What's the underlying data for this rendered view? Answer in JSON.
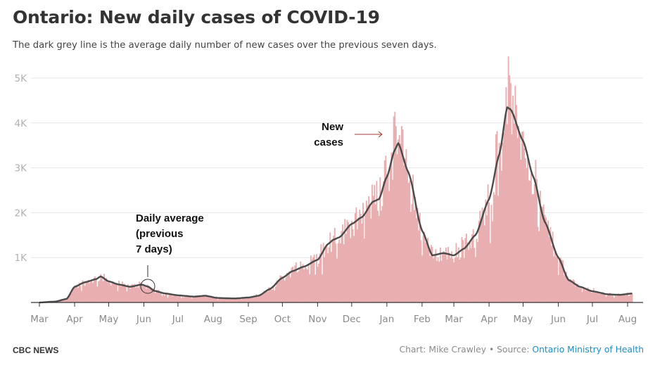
{
  "header": {
    "title": "Ontario: New daily cases of COVID-19",
    "subtitle": "The dark grey line is the average daily number of new cases over the previous seven days."
  },
  "footer": {
    "brand": "CBC NEWS",
    "credit": "Chart: Mike Crawley",
    "separator": " • ",
    "source_prefix": "Source: ",
    "source_link": "Ontario Ministry of Health"
  },
  "colors": {
    "bars": "#e8aeb0",
    "average_line": "#4a4a4a",
    "grid": "#e6e6e6",
    "axis": "#333333",
    "arrow": "#a33a3a",
    "link": "#1f8bbf"
  },
  "chart_data": {
    "type": "bar",
    "title": "Ontario: New daily cases of COVID-19",
    "xlabel": "",
    "ylabel": "",
    "ylim": [
      0,
      5000
    ],
    "yticks": [
      1000,
      2000,
      3000,
      4000,
      5000
    ],
    "ytick_labels": [
      "1K",
      "2K",
      "3K",
      "4K",
      "5K"
    ],
    "grid": true,
    "x_range": [
      "2020-03-01",
      "2021-08-05"
    ],
    "xticks": [
      {
        "date": "2020-03-01",
        "label": "Mar"
      },
      {
        "date": "2020-04-01",
        "label": "Apr"
      },
      {
        "date": "2020-05-01",
        "label": "May"
      },
      {
        "date": "2020-06-01",
        "label": "Jun"
      },
      {
        "date": "2020-07-01",
        "label": "Jul"
      },
      {
        "date": "2020-08-01",
        "label": "Aug"
      },
      {
        "date": "2020-09-01",
        "label": "Sep"
      },
      {
        "date": "2020-10-01",
        "label": "Oct"
      },
      {
        "date": "2020-11-01",
        "label": "Nov"
      },
      {
        "date": "2020-12-01",
        "label": "Dec"
      },
      {
        "date": "2021-01-01",
        "label": "Jan"
      },
      {
        "date": "2021-02-01",
        "label": "Feb"
      },
      {
        "date": "2021-03-01",
        "label": "Mar"
      },
      {
        "date": "2021-04-01",
        "label": "Apr"
      },
      {
        "date": "2021-05-01",
        "label": "May"
      },
      {
        "date": "2021-06-01",
        "label": "Jun"
      },
      {
        "date": "2021-07-01",
        "label": "Jul"
      },
      {
        "date": "2021-08-01",
        "label": "Aug"
      }
    ],
    "series": [
      {
        "name": "Daily average (previous 7 days)",
        "type": "line",
        "points": [
          [
            "2020-03-01",
            0
          ],
          [
            "2020-03-15",
            20
          ],
          [
            "2020-03-25",
            80
          ],
          [
            "2020-04-01",
            350
          ],
          [
            "2020-04-10",
            450
          ],
          [
            "2020-04-20",
            520
          ],
          [
            "2020-04-24",
            580
          ],
          [
            "2020-05-01",
            470
          ],
          [
            "2020-05-10",
            400
          ],
          [
            "2020-05-20",
            350
          ],
          [
            "2020-05-30",
            400
          ],
          [
            "2020-06-05",
            350
          ],
          [
            "2020-06-10",
            260
          ],
          [
            "2020-06-20",
            200
          ],
          [
            "2020-07-01",
            160
          ],
          [
            "2020-07-15",
            130
          ],
          [
            "2020-07-25",
            150
          ],
          [
            "2020-08-05",
            100
          ],
          [
            "2020-08-20",
            90
          ],
          [
            "2020-09-01",
            110
          ],
          [
            "2020-09-10",
            150
          ],
          [
            "2020-09-20",
            300
          ],
          [
            "2020-10-01",
            550
          ],
          [
            "2020-10-10",
            700
          ],
          [
            "2020-10-20",
            800
          ],
          [
            "2020-11-01",
            950
          ],
          [
            "2020-11-10",
            1300
          ],
          [
            "2020-11-15",
            1400
          ],
          [
            "2020-11-20",
            1450
          ],
          [
            "2020-12-01",
            1750
          ],
          [
            "2020-12-10",
            1900
          ],
          [
            "2020-12-20",
            2250
          ],
          [
            "2020-12-25",
            2300
          ],
          [
            "2021-01-01",
            2800
          ],
          [
            "2021-01-08",
            3400
          ],
          [
            "2021-01-11",
            3550
          ],
          [
            "2021-01-20",
            2900
          ],
          [
            "2021-02-01",
            1600
          ],
          [
            "2021-02-10",
            1050
          ],
          [
            "2021-02-20",
            1100
          ],
          [
            "2021-03-01",
            1050
          ],
          [
            "2021-03-10",
            1200
          ],
          [
            "2021-03-20",
            1500
          ],
          [
            "2021-04-01",
            2300
          ],
          [
            "2021-04-10",
            3300
          ],
          [
            "2021-04-17",
            4350
          ],
          [
            "2021-04-20",
            4300
          ],
          [
            "2021-05-01",
            3600
          ],
          [
            "2021-05-10",
            2800
          ],
          [
            "2021-05-20",
            1800
          ],
          [
            "2021-06-01",
            1000
          ],
          [
            "2021-06-10",
            500
          ],
          [
            "2021-06-20",
            350
          ],
          [
            "2021-07-01",
            250
          ],
          [
            "2021-07-15",
            180
          ],
          [
            "2021-07-25",
            170
          ],
          [
            "2021-08-05",
            200
          ]
        ]
      },
      {
        "name": "New cases",
        "type": "bar",
        "note": "daily values fluctuate around the 7-day average; notable peaks ~4250 (early Jan 2021) and ~4800 (mid-Apr 2021)",
        "peaks": [
          [
            "2021-01-08",
            4250
          ],
          [
            "2021-04-16",
            4800
          ]
        ]
      }
    ],
    "annotations": [
      {
        "text_lines": [
          "New",
          "cases"
        ],
        "points_to": "New cases bars",
        "near_date": "2020-12-25"
      },
      {
        "text_lines": [
          "Daily average",
          "(previous",
          "7 days)"
        ],
        "points_to": "7-day average line",
        "near_date": "2020-06-05"
      }
    ]
  }
}
